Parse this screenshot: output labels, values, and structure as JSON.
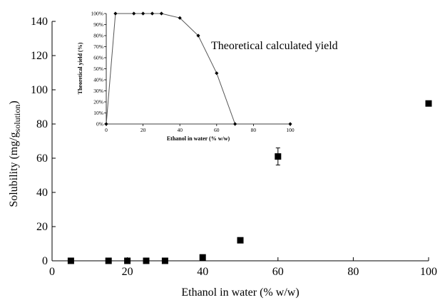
{
  "chart_data": [
    {
      "type": "scatter",
      "xlabel": "Ethanol in water (% w/w)",
      "ylabel_main": "Solubility  (mg/g",
      "ylabel_sub": "solution",
      "ylabel_close": ")",
      "xlim": [
        0,
        100
      ],
      "ylim": [
        0,
        140
      ],
      "xticks": [
        "0",
        "20",
        "40",
        "60",
        "80",
        "100"
      ],
      "yticks": [
        "0",
        "20",
        "40",
        "60",
        "80",
        "100",
        "120",
        "140"
      ],
      "grid": false,
      "series": [
        {
          "points": [
            {
              "x": 5,
              "y": 0
            },
            {
              "x": 15,
              "y": 0
            },
            {
              "x": 20,
              "y": 0
            },
            {
              "x": 25,
              "y": 0
            },
            {
              "x": 30,
              "y": 0
            },
            {
              "x": 40,
              "y": 2
            },
            {
              "x": 50,
              "y": 12
            },
            {
              "x": 60,
              "y": 61,
              "err": 5
            },
            {
              "x": 100,
              "y": 92
            }
          ]
        }
      ]
    },
    {
      "type": "line",
      "annotation": "Theoretical calculated yield",
      "xlabel": "Ethanol in water (% w/w)",
      "ylabel": "Theoretical yield (%)",
      "xlim": [
        0,
        100
      ],
      "ylim": [
        0,
        100
      ],
      "xticks": [
        "0",
        "20",
        "40",
        "60",
        "80",
        "100"
      ],
      "yticks": [
        "0%",
        "10%",
        "20%",
        "30%",
        "40%",
        "50%",
        "60%",
        "70%",
        "80%",
        "90%",
        "100%"
      ],
      "grid": false,
      "series": [
        {
          "x": [
            0,
            5,
            15,
            20,
            25,
            30,
            40,
            50,
            60,
            70,
            100
          ],
          "y": [
            0,
            100,
            100,
            100,
            100,
            100,
            96,
            80,
            46,
            0,
            0
          ],
          "connected_until_index": 9
        }
      ]
    }
  ]
}
